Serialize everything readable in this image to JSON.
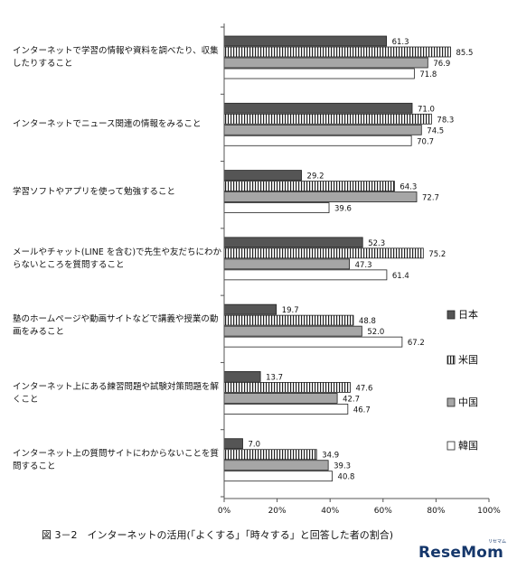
{
  "chart_data": {
    "type": "bar",
    "orientation": "horizontal",
    "categories": [
      "インターネットで学習の情報や資料を調べたり、収集したりすること",
      "インターネットでニュース関連の情報をみること",
      "学習ソフトやアプリを使って勉強すること",
      "メールやチャット(LINE を含む)で先生や友だちにわからないところを質問すること",
      "塾のホームページや動画サイトなどで講義や授業の動画をみること",
      "インターネット上にある練習問題や試験対策問題を解くこと",
      "インターネット上の質問サイトにわからないことを質問すること"
    ],
    "series": [
      {
        "name": "日本",
        "color": "#555555",
        "pattern": "solid",
        "values": [
          61.3,
          71.0,
          29.2,
          52.3,
          19.7,
          13.7,
          7.0
        ]
      },
      {
        "name": "米国",
        "color": "#ffffff",
        "pattern": "vertical-stripes",
        "values": [
          85.5,
          78.3,
          64.3,
          75.2,
          48.8,
          47.6,
          34.9
        ]
      },
      {
        "name": "中国",
        "color": "#a6a6a6",
        "pattern": "solid",
        "values": [
          76.9,
          74.5,
          72.7,
          47.3,
          52.0,
          42.7,
          39.3
        ]
      },
      {
        "name": "韓国",
        "color": "#ffffff",
        "pattern": "outline",
        "values": [
          71.8,
          70.7,
          39.6,
          61.4,
          67.2,
          46.7,
          40.8
        ]
      }
    ],
    "xlim": [
      0,
      100
    ],
    "xticks": [
      "0%",
      "20%",
      "40%",
      "60%",
      "80%",
      "100%"
    ],
    "grid": false,
    "legend_position": "right"
  },
  "caption": "図 3－2　インターネットの活用(「よくする」「時々する」と回答した者の割合)",
  "watermark": "ReseMom",
  "watermark_small": "リセマム"
}
